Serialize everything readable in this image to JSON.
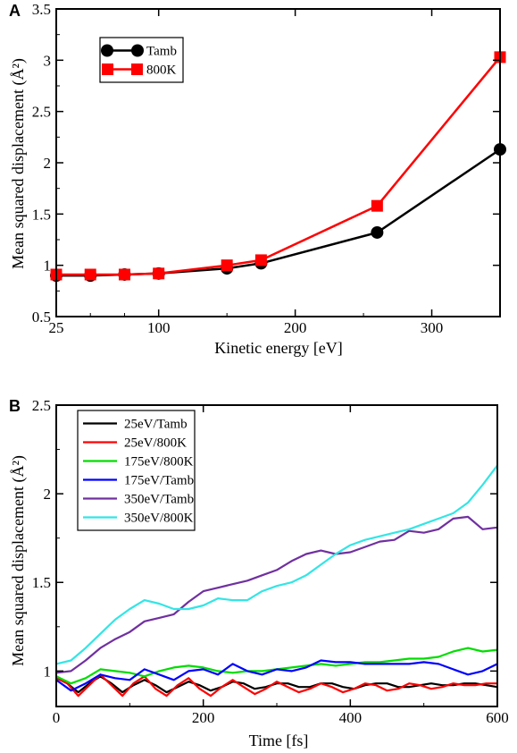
{
  "chart_data": [
    {
      "type": "line",
      "panel_label": "A",
      "xlabel": "Kinetic energy [eV]",
      "ylabel": "Mean squared displacement (Å²)",
      "xlim": [
        25,
        350
      ],
      "ylim": [
        0.5,
        3.5
      ],
      "xticks": [
        25,
        100,
        200,
        300
      ],
      "yticks": [
        0.5,
        1,
        1.5,
        2,
        2.5,
        3,
        3.5
      ],
      "ytick_labels": [
        "0.5",
        "1",
        "1.5",
        "2",
        "2.5",
        "3",
        "3.5"
      ],
      "legend_position": "top-left",
      "series": [
        {
          "name": "Tamb",
          "color": "#000000",
          "marker": "circle",
          "x": [
            25,
            50,
            75,
            100,
            150,
            175,
            260,
            350
          ],
          "y": [
            0.9,
            0.9,
            0.91,
            0.92,
            0.97,
            1.02,
            1.32,
            2.13
          ]
        },
        {
          "name": "800K",
          "color": "#ff0000",
          "marker": "square",
          "x": [
            25,
            50,
            75,
            100,
            150,
            175,
            260,
            350
          ],
          "y": [
            0.91,
            0.91,
            0.91,
            0.92,
            1.0,
            1.05,
            1.58,
            3.03
          ]
        }
      ]
    },
    {
      "type": "line",
      "panel_label": "B",
      "xlabel": "Time [fs]",
      "ylabel": "Mean squared displacement (Å²)",
      "xlim": [
        0,
        600
      ],
      "ylim": [
        0.8,
        2.5
      ],
      "xticks": [
        0,
        200,
        400,
        600
      ],
      "yticks": [
        1,
        1.5,
        2,
        2.5
      ],
      "ytick_labels": [
        "1",
        "1.5",
        "2",
        "2.5"
      ],
      "legend_position": "top-left",
      "series": [
        {
          "name": "25eV/Tamb",
          "color": "#000000",
          "x": [
            0,
            15,
            30,
            45,
            60,
            75,
            90,
            105,
            120,
            135,
            150,
            165,
            180,
            195,
            210,
            225,
            240,
            255,
            270,
            285,
            300,
            315,
            330,
            345,
            360,
            375,
            390,
            405,
            420,
            435,
            450,
            465,
            480,
            495,
            510,
            525,
            540,
            555,
            570,
            585,
            600
          ],
          "y": [
            0.97,
            0.93,
            0.88,
            0.93,
            0.97,
            0.93,
            0.88,
            0.92,
            0.95,
            0.92,
            0.88,
            0.91,
            0.94,
            0.92,
            0.89,
            0.91,
            0.94,
            0.93,
            0.9,
            0.91,
            0.93,
            0.93,
            0.91,
            0.91,
            0.93,
            0.93,
            0.91,
            0.9,
            0.92,
            0.93,
            0.93,
            0.91,
            0.91,
            0.92,
            0.93,
            0.92,
            0.92,
            0.93,
            0.93,
            0.92,
            0.91
          ]
        },
        {
          "name": "25eV/800K",
          "color": "#ff0000",
          "x": [
            0,
            15,
            30,
            45,
            60,
            75,
            90,
            105,
            120,
            135,
            150,
            165,
            180,
            195,
            210,
            225,
            240,
            255,
            270,
            285,
            300,
            315,
            330,
            345,
            360,
            375,
            390,
            405,
            420,
            435,
            450,
            465,
            480,
            495,
            510,
            525,
            540,
            555,
            570,
            585,
            600
          ],
          "y": [
            0.96,
            0.93,
            0.86,
            0.92,
            0.98,
            0.92,
            0.86,
            0.93,
            0.97,
            0.9,
            0.86,
            0.92,
            0.96,
            0.9,
            0.86,
            0.91,
            0.95,
            0.91,
            0.87,
            0.9,
            0.94,
            0.91,
            0.88,
            0.9,
            0.93,
            0.91,
            0.88,
            0.9,
            0.93,
            0.92,
            0.89,
            0.9,
            0.93,
            0.92,
            0.9,
            0.91,
            0.93,
            0.92,
            0.92,
            0.93,
            0.93
          ]
        },
        {
          "name": "175eV/800K",
          "color": "#00dd00",
          "x": [
            0,
            20,
            40,
            60,
            80,
            100,
            120,
            140,
            160,
            180,
            200,
            220,
            240,
            260,
            280,
            300,
            320,
            340,
            360,
            380,
            400,
            420,
            440,
            460,
            480,
            500,
            520,
            540,
            560,
            580,
            600
          ],
          "y": [
            0.97,
            0.93,
            0.96,
            1.01,
            1.0,
            0.99,
            0.97,
            1.0,
            1.02,
            1.03,
            1.02,
            1.0,
            0.99,
            1.0,
            1.0,
            1.01,
            1.02,
            1.03,
            1.04,
            1.03,
            1.04,
            1.05,
            1.05,
            1.06,
            1.07,
            1.07,
            1.08,
            1.11,
            1.13,
            1.11,
            1.12
          ]
        },
        {
          "name": "175eV/Tamb",
          "color": "#0000ff",
          "x": [
            0,
            20,
            40,
            60,
            80,
            100,
            120,
            140,
            160,
            180,
            200,
            220,
            240,
            260,
            280,
            300,
            320,
            340,
            360,
            380,
            400,
            420,
            440,
            460,
            480,
            500,
            520,
            540,
            560,
            580,
            600
          ],
          "y": [
            0.95,
            0.89,
            0.93,
            0.98,
            0.96,
            0.95,
            1.01,
            0.98,
            0.95,
            1.0,
            1.01,
            0.98,
            1.04,
            1.0,
            0.98,
            1.01,
            1.0,
            1.02,
            1.06,
            1.05,
            1.05,
            1.04,
            1.04,
            1.04,
            1.04,
            1.05,
            1.04,
            1.01,
            0.98,
            1.0,
            1.04
          ]
        },
        {
          "name": "350eV/Tamb",
          "color": "#7030a0",
          "x": [
            0,
            20,
            40,
            60,
            80,
            100,
            120,
            140,
            160,
            180,
            200,
            220,
            240,
            260,
            280,
            300,
            320,
            340,
            360,
            380,
            400,
            420,
            440,
            460,
            480,
            500,
            520,
            540,
            560,
            580,
            600
          ],
          "y": [
            0.99,
            1.0,
            1.06,
            1.13,
            1.18,
            1.22,
            1.28,
            1.3,
            1.32,
            1.39,
            1.45,
            1.47,
            1.49,
            1.51,
            1.54,
            1.57,
            1.62,
            1.66,
            1.68,
            1.66,
            1.67,
            1.7,
            1.73,
            1.74,
            1.79,
            1.78,
            1.8,
            1.86,
            1.87,
            1.8,
            1.81
          ]
        },
        {
          "name": "350eV/800K",
          "color": "#33e5e5",
          "x": [
            0,
            20,
            40,
            60,
            80,
            100,
            120,
            140,
            160,
            180,
            200,
            220,
            240,
            260,
            280,
            300,
            320,
            340,
            360,
            380,
            400,
            420,
            440,
            460,
            480,
            500,
            520,
            540,
            560,
            580,
            600
          ],
          "y": [
            1.04,
            1.06,
            1.13,
            1.21,
            1.29,
            1.35,
            1.4,
            1.38,
            1.35,
            1.35,
            1.37,
            1.41,
            1.4,
            1.4,
            1.45,
            1.48,
            1.5,
            1.54,
            1.6,
            1.66,
            1.71,
            1.74,
            1.76,
            1.78,
            1.8,
            1.83,
            1.86,
            1.89,
            1.95,
            2.05,
            2.16
          ]
        }
      ]
    }
  ]
}
